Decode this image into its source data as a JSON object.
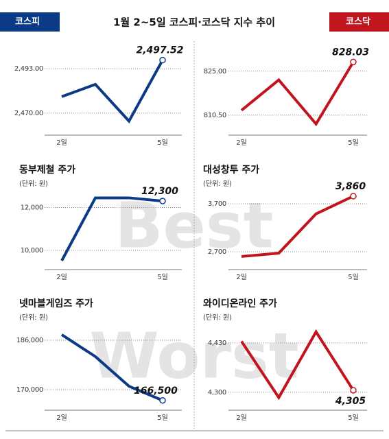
{
  "title": "1월 2~5일 코스피·코스닥 지수 추이",
  "watermarks": [
    "Best",
    "Worst"
  ],
  "chart_data": [
    {
      "type": "line",
      "title": "코스피",
      "categories": [
        "2일",
        null,
        null,
        "5일"
      ],
      "values": [
        2478.5,
        2484.9,
        2465.8,
        2497.52
      ],
      "value_labels": [
        null,
        null,
        null,
        "2,497.52"
      ],
      "color": "#0b3a86",
      "ylim": [
        2461,
        2502
      ],
      "yticks": [
        {
          "value": 2470,
          "label": "2,470.00"
        },
        {
          "value": 2493,
          "label": "2,493.00"
        }
      ],
      "grid": true
    },
    {
      "type": "line",
      "title": "코스닥",
      "categories": [
        "2일",
        null,
        null,
        "5일"
      ],
      "values": [
        812.1,
        822.1,
        807.6,
        828.03
      ],
      "value_labels": [
        null,
        null,
        null,
        "828.03"
      ],
      "color": "#c0141e",
      "ylim": [
        805.5,
        831.5
      ],
      "yticks": [
        {
          "value": 810.5,
          "label": "810.50"
        },
        {
          "value": 825,
          "label": "825.00"
        }
      ],
      "grid": true
    },
    {
      "type": "line",
      "title": "동부제철 주가",
      "subtitle": "(단위: 원)",
      "categories": [
        "2일",
        null,
        null,
        "5일"
      ],
      "values": [
        9520,
        12450,
        12450,
        12300
      ],
      "value_labels": [
        null,
        null,
        null,
        "12,300"
      ],
      "color": "#0b3a86",
      "ylim": [
        9200,
        13200
      ],
      "yticks": [
        {
          "value": 10000,
          "label": "10,000"
        },
        {
          "value": 12000,
          "label": "12,000"
        }
      ],
      "grid": true
    },
    {
      "type": "line",
      "title": "대성창투 주가",
      "subtitle": "(단위: 원)",
      "categories": [
        "2일",
        null,
        null,
        "5일"
      ],
      "values": [
        2600,
        2670,
        3490,
        3860
      ],
      "value_labels": [
        null,
        null,
        null,
        "3,860"
      ],
      "color": "#c0141e",
      "ylim": [
        2370,
        4160
      ],
      "yticks": [
        {
          "value": 2700,
          "label": "2,700"
        },
        {
          "value": 3700,
          "label": "3,700"
        }
      ],
      "grid": true
    },
    {
      "type": "line",
      "title": "넷마블게임즈 주가",
      "subtitle": "(단위: 원)",
      "categories": [
        "2일",
        null,
        null,
        "5일"
      ],
      "values": [
        187800,
        180700,
        171100,
        166500
      ],
      "value_labels": [
        null,
        null,
        null,
        "166,500"
      ],
      "color": "#0b3a86",
      "ylim": [
        164000,
        194000
      ],
      "yticks": [
        {
          "value": 170000,
          "label": "170,000"
        },
        {
          "value": 186000,
          "label": "186,000"
        }
      ],
      "grid": true
    },
    {
      "type": "line",
      "title": "와이디온라인 주가",
      "subtitle": "(단위: 원)",
      "categories": [
        "2일",
        null,
        null,
        "5일"
      ],
      "values": [
        4434,
        4286,
        4459,
        4305
      ],
      "value_labels": [
        null,
        null,
        null,
        "4,305"
      ],
      "color": "#c0141e",
      "ylim": [
        4258,
        4502
      ],
      "yticks": [
        {
          "value": 4300,
          "label": "4,300"
        },
        {
          "value": 4430,
          "label": "4,430"
        }
      ],
      "grid": true
    }
  ]
}
